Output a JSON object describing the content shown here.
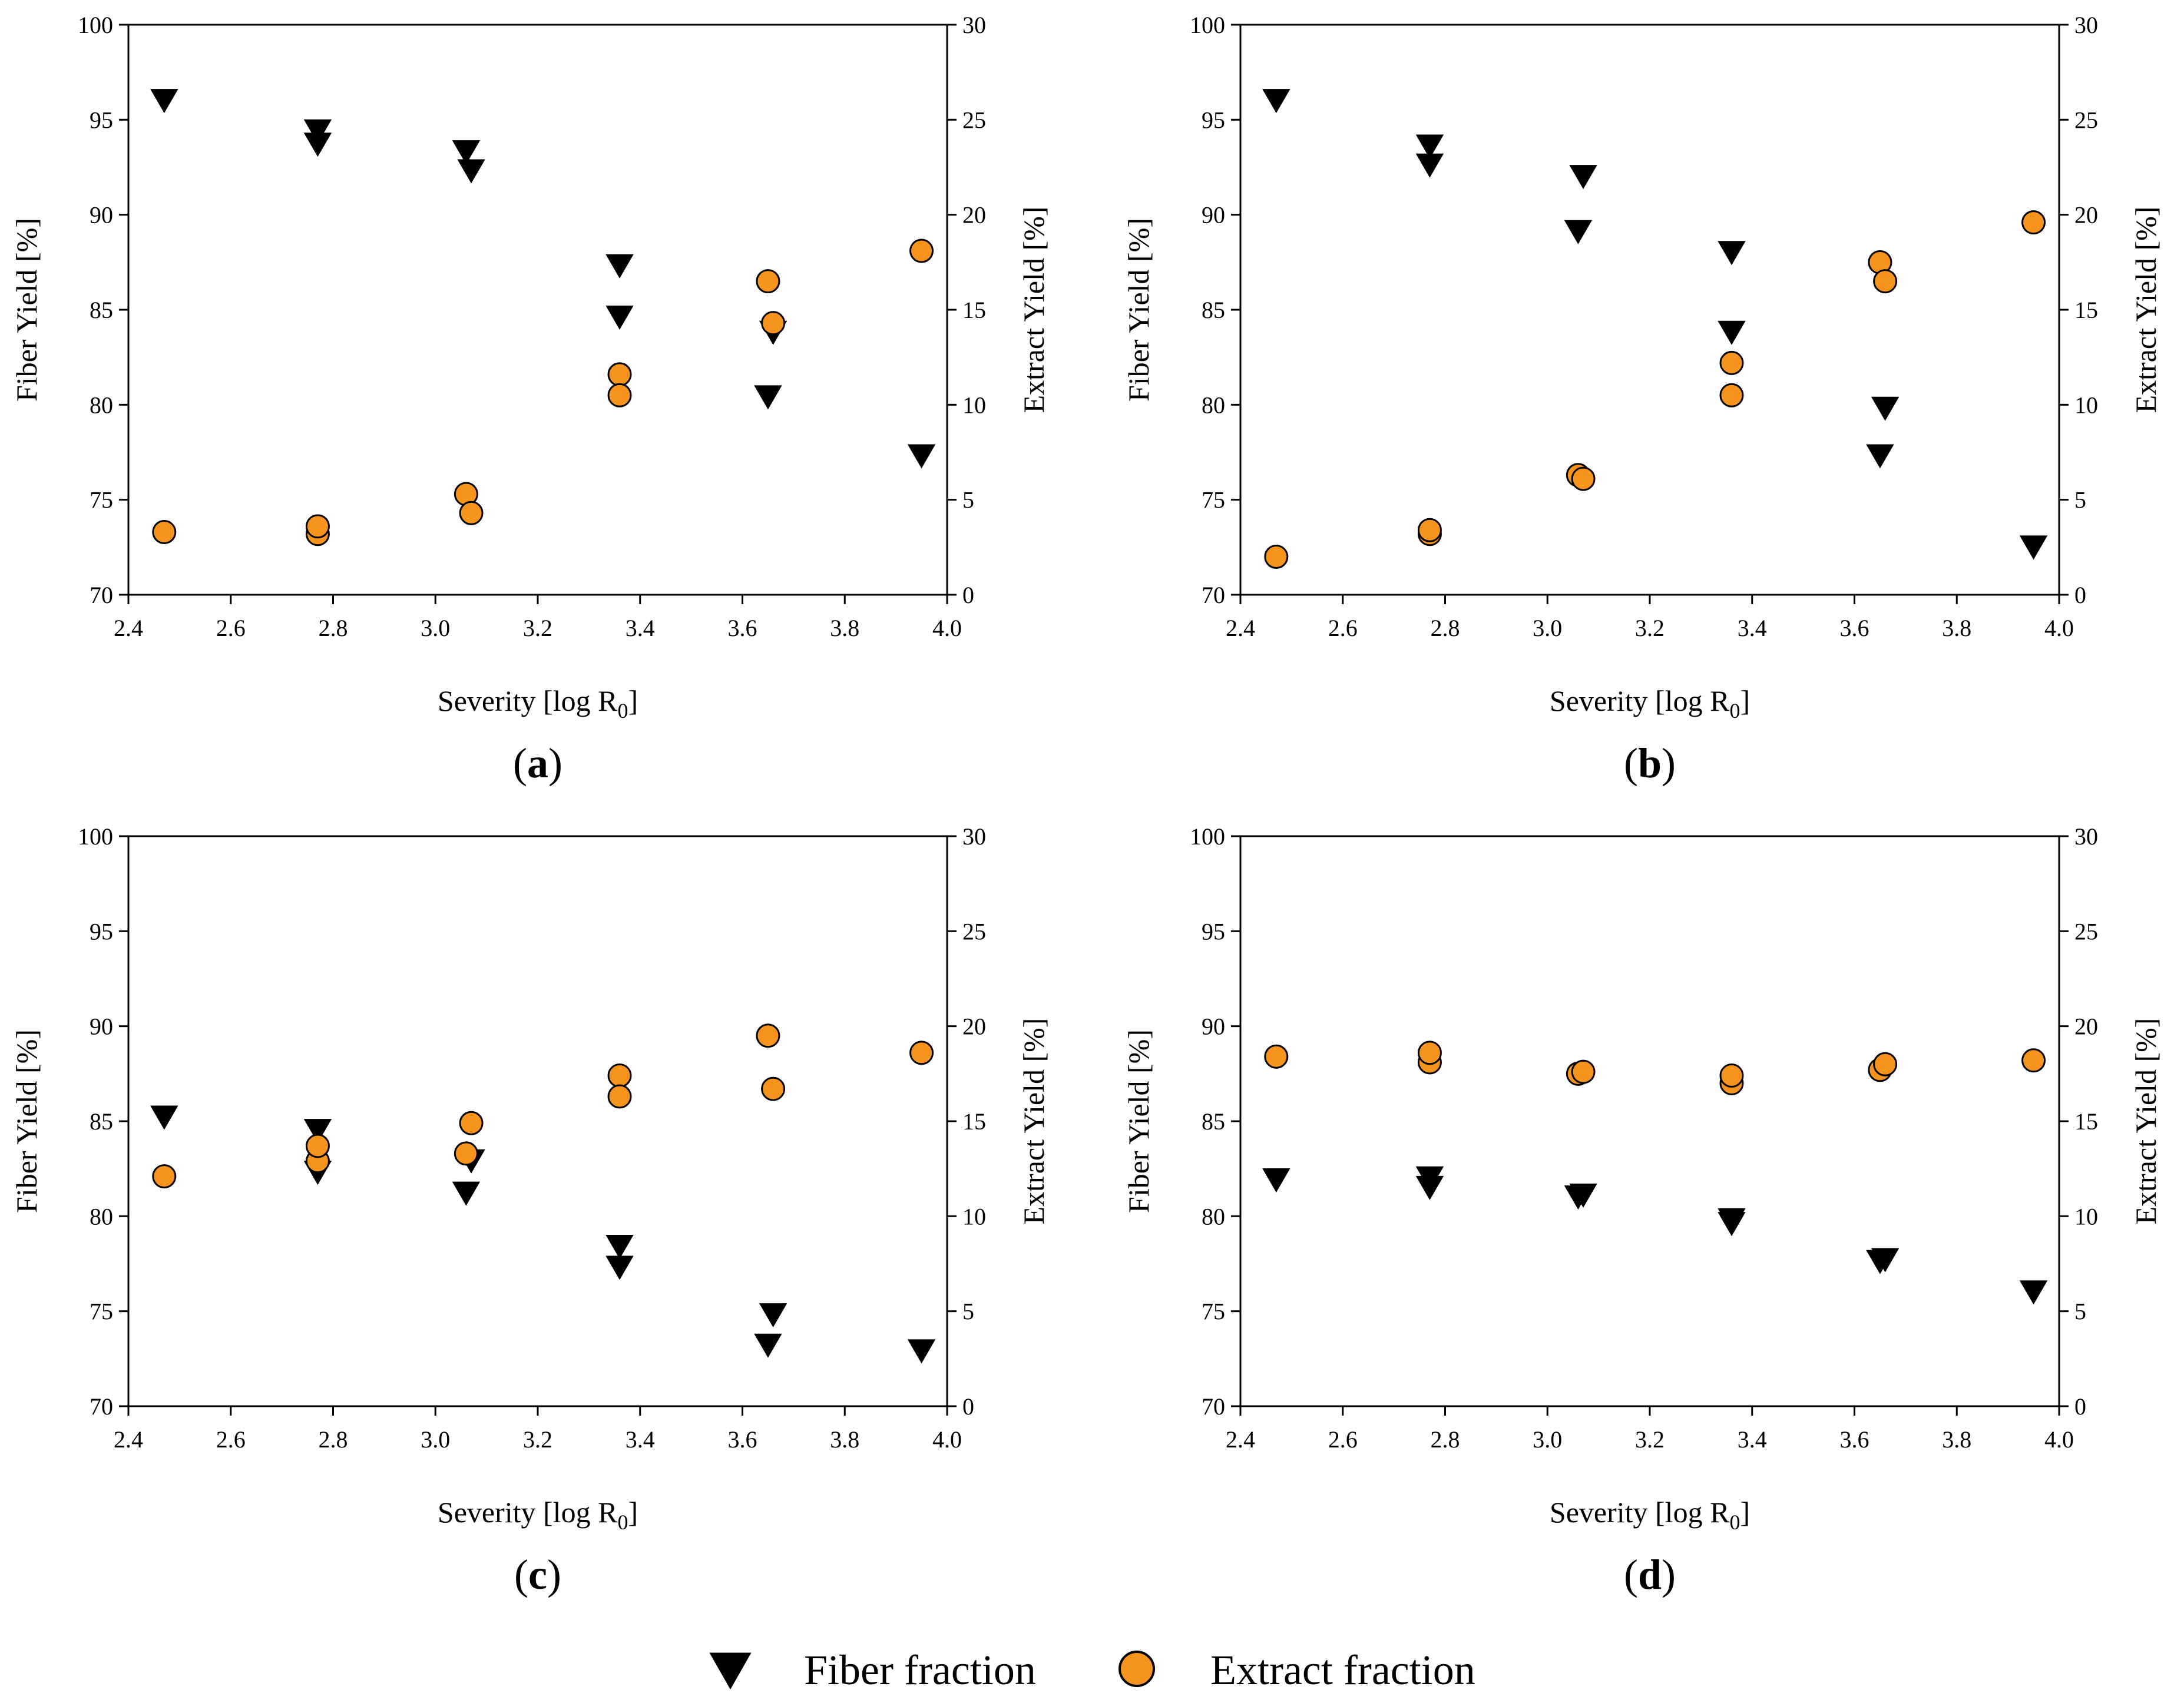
{
  "colors": {
    "fiber": "#000000",
    "extract": "#F7941D",
    "axis": "#000000",
    "background": "#ffffff"
  },
  "legend": {
    "fiber_label": "Fiber fraction",
    "extract_label": "Extract fraction",
    "fiber_icon": "down-triangle-icon",
    "extract_icon": "orange-circle-icon"
  },
  "chart_data": [
    {
      "type": "scatter",
      "panel": "a",
      "panel_label_open": "(",
      "panel_label_letter": "a",
      "panel_label_close": ")",
      "xlabel": "Severity [log R",
      "xlabel_sub": "0",
      "xlabel_close": "]",
      "ylabel": "Fiber Yield [%]",
      "y2label": "Extract Yield [%]",
      "xlim": [
        2.4,
        4.0
      ],
      "ylim": [
        70,
        100
      ],
      "y2lim": [
        0,
        30
      ],
      "xticks": [
        "2.4",
        "2.6",
        "2.8",
        "3.0",
        "3.2",
        "3.4",
        "3.6",
        "3.8",
        "4.0"
      ],
      "yticks": [
        "70",
        "75",
        "80",
        "85",
        "90",
        "95",
        "100"
      ],
      "y2ticks": [
        "0",
        "5",
        "10",
        "15",
        "20",
        "25",
        "30"
      ],
      "series": [
        {
          "name": "Fiber fraction",
          "axis": "left",
          "marker": "triangle-down",
          "points": [
            [
              2.47,
              96.0
            ],
            [
              2.77,
              94.4
            ],
            [
              2.77,
              93.7
            ],
            [
              3.06,
              93.3
            ],
            [
              3.07,
              92.3
            ],
            [
              3.36,
              87.3
            ],
            [
              3.36,
              84.6
            ],
            [
              3.65,
              80.4
            ],
            [
              3.66,
              83.8
            ],
            [
              3.95,
              77.3
            ]
          ]
        },
        {
          "name": "Extract fraction",
          "axis": "right",
          "marker": "circle",
          "points": [
            [
              2.47,
              3.3
            ],
            [
              2.77,
              3.2
            ],
            [
              2.77,
              3.6
            ],
            [
              3.06,
              5.3
            ],
            [
              3.07,
              4.3
            ],
            [
              3.36,
              11.6
            ],
            [
              3.36,
              10.5
            ],
            [
              3.65,
              16.5
            ],
            [
              3.66,
              14.3
            ],
            [
              3.95,
              18.1
            ]
          ]
        }
      ]
    },
    {
      "type": "scatter",
      "panel": "b",
      "panel_label_open": "(",
      "panel_label_letter": "b",
      "panel_label_close": ")",
      "xlabel": "Severity [log R",
      "xlabel_sub": "0",
      "xlabel_close": "]",
      "ylabel": "Fiber Yield [%]",
      "y2label": "Extract Yield [%]",
      "xlim": [
        2.4,
        4.0
      ],
      "ylim": [
        70,
        100
      ],
      "y2lim": [
        0,
        30
      ],
      "xticks": [
        "2.4",
        "2.6",
        "2.8",
        "3.0",
        "3.2",
        "3.4",
        "3.6",
        "3.8",
        "4.0"
      ],
      "yticks": [
        "70",
        "75",
        "80",
        "85",
        "90",
        "95",
        "100"
      ],
      "y2ticks": [
        "0",
        "5",
        "10",
        "15",
        "20",
        "25",
        "30"
      ],
      "series": [
        {
          "name": "Fiber fraction",
          "axis": "left",
          "marker": "triangle-down",
          "points": [
            [
              2.47,
              96.0
            ],
            [
              2.77,
              93.6
            ],
            [
              2.77,
              92.6
            ],
            [
              3.07,
              92.0
            ],
            [
              3.06,
              89.1
            ],
            [
              3.36,
              88.0
            ],
            [
              3.36,
              83.8
            ],
            [
              3.66,
              79.8
            ],
            [
              3.65,
              77.3
            ],
            [
              3.95,
              72.5
            ]
          ]
        },
        {
          "name": "Extract fraction",
          "axis": "right",
          "marker": "circle",
          "points": [
            [
              2.47,
              2.0
            ],
            [
              2.77,
              3.2
            ],
            [
              2.77,
              3.4
            ],
            [
              3.06,
              6.3
            ],
            [
              3.07,
              6.1
            ],
            [
              3.36,
              12.2
            ],
            [
              3.36,
              10.5
            ],
            [
              3.65,
              17.5
            ],
            [
              3.66,
              16.5
            ],
            [
              3.95,
              19.6
            ]
          ]
        }
      ]
    },
    {
      "type": "scatter",
      "panel": "c",
      "panel_label_open": "(",
      "panel_label_letter": "c",
      "panel_label_close": ")",
      "xlabel": "Severity [log R",
      "xlabel_sub": "0",
      "xlabel_close": "]",
      "ylabel": "Fiber Yield [%]",
      "y2label": "Extract Yield [%]",
      "xlim": [
        2.4,
        4.0
      ],
      "ylim": [
        70,
        100
      ],
      "y2lim": [
        0,
        30
      ],
      "xticks": [
        "2.4",
        "2.6",
        "2.8",
        "3.0",
        "3.2",
        "3.4",
        "3.6",
        "3.8",
        "4.0"
      ],
      "yticks": [
        "70",
        "75",
        "80",
        "85",
        "90",
        "95",
        "100"
      ],
      "y2ticks": [
        "0",
        "5",
        "10",
        "15",
        "20",
        "25",
        "30"
      ],
      "series": [
        {
          "name": "Fiber fraction",
          "axis": "left",
          "marker": "triangle-down",
          "points": [
            [
              2.47,
              85.2
            ],
            [
              2.77,
              84.5
            ],
            [
              2.77,
              82.3
            ],
            [
              3.07,
              82.9
            ],
            [
              3.06,
              81.2
            ],
            [
              3.36,
              78.4
            ],
            [
              3.36,
              77.3
            ],
            [
              3.66,
              74.8
            ],
            [
              3.65,
              73.2
            ],
            [
              3.95,
              72.9
            ]
          ]
        },
        {
          "name": "Extract fraction",
          "axis": "right",
          "marker": "circle",
          "points": [
            [
              2.47,
              12.1
            ],
            [
              2.77,
              12.9
            ],
            [
              2.77,
              13.7
            ],
            [
              3.06,
              13.3
            ],
            [
              3.07,
              14.9
            ],
            [
              3.36,
              17.4
            ],
            [
              3.36,
              16.3
            ],
            [
              3.65,
              19.5
            ],
            [
              3.66,
              16.7
            ],
            [
              3.95,
              18.6
            ]
          ]
        }
      ]
    },
    {
      "type": "scatter",
      "panel": "d",
      "panel_label_open": "(",
      "panel_label_letter": "d",
      "panel_label_close": ")",
      "xlabel": "Severity [log R",
      "xlabel_sub": "0",
      "xlabel_close": "]",
      "ylabel": "Fiber Yield [%]",
      "y2label": "Extract Yield [%]",
      "xlim": [
        2.4,
        4.0
      ],
      "ylim": [
        70,
        100
      ],
      "y2lim": [
        0,
        30
      ],
      "xticks": [
        "2.4",
        "2.6",
        "2.8",
        "3.0",
        "3.2",
        "3.4",
        "3.6",
        "3.8",
        "4.0"
      ],
      "yticks": [
        "70",
        "75",
        "80",
        "85",
        "90",
        "95",
        "100"
      ],
      "y2ticks": [
        "0",
        "5",
        "10",
        "15",
        "20",
        "25",
        "30"
      ],
      "series": [
        {
          "name": "Fiber fraction",
          "axis": "left",
          "marker": "triangle-down",
          "points": [
            [
              2.47,
              81.9
            ],
            [
              2.77,
              82.0
            ],
            [
              2.77,
              81.5
            ],
            [
              3.06,
              81.0
            ],
            [
              3.07,
              81.1
            ],
            [
              3.36,
              79.8
            ],
            [
              3.36,
              79.6
            ],
            [
              3.65,
              77.6
            ],
            [
              3.66,
              77.7
            ],
            [
              3.95,
              76.0
            ]
          ]
        },
        {
          "name": "Extract fraction",
          "axis": "right",
          "marker": "circle",
          "points": [
            [
              2.47,
              18.4
            ],
            [
              2.77,
              18.1
            ],
            [
              2.77,
              18.6
            ],
            [
              3.06,
              17.5
            ],
            [
              3.07,
              17.6
            ],
            [
              3.36,
              17.0
            ],
            [
              3.36,
              17.4
            ],
            [
              3.65,
              17.7
            ],
            [
              3.66,
              18.0
            ],
            [
              3.95,
              18.2
            ]
          ]
        }
      ]
    }
  ]
}
